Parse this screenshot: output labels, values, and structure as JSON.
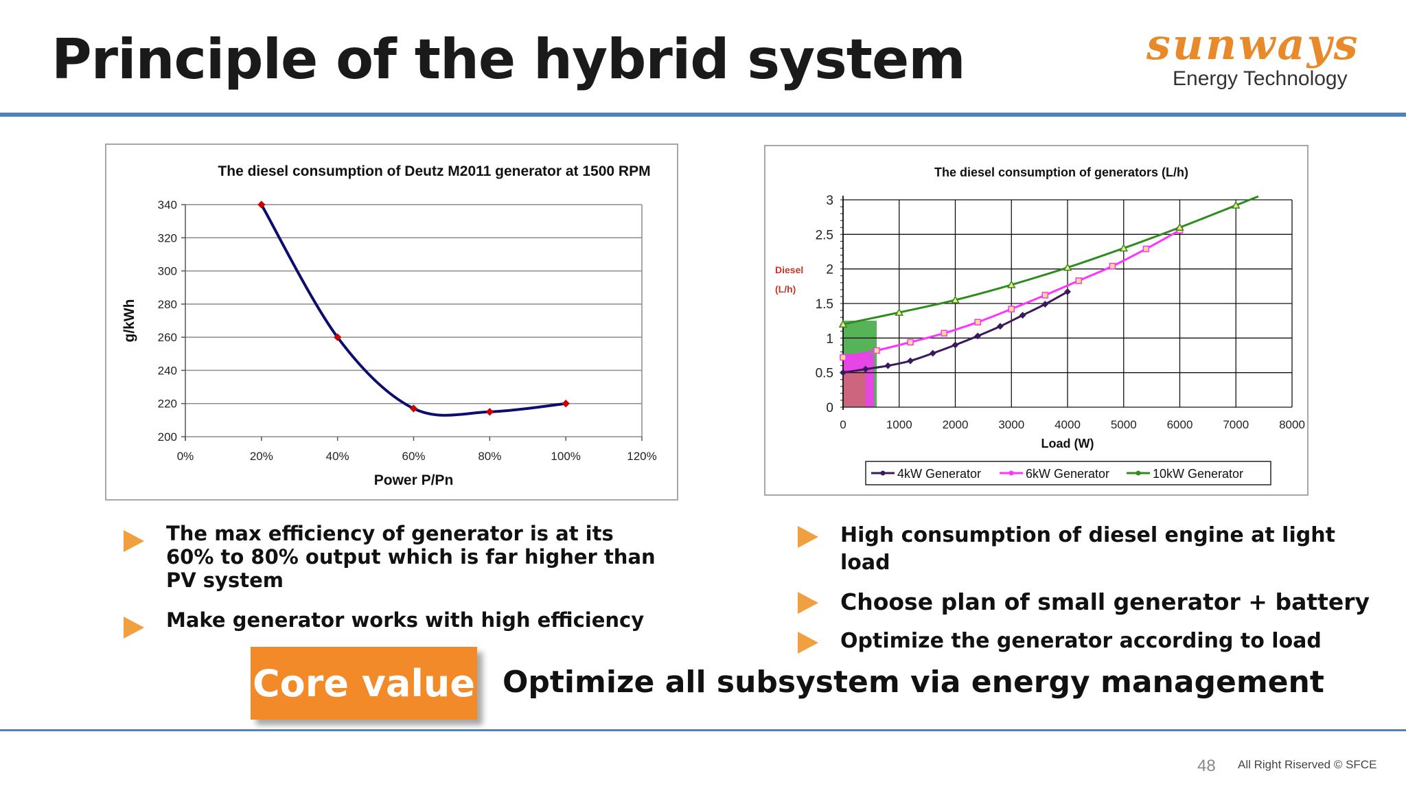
{
  "header": {
    "title": "Principle of the hybrid system",
    "logo_brand": "sunways",
    "logo_sub": "Energy Technology"
  },
  "chart_data": [
    {
      "type": "line",
      "title": "The diesel consumption of Deutz M2011 generator at 1500 RPM",
      "xlabel": "Power P/Pn",
      "ylabel": "g/kWh",
      "x": [
        0.2,
        0.4,
        0.6,
        0.8,
        1.0
      ],
      "values": [
        340,
        260,
        217,
        215,
        220
      ],
      "xlim": [
        0,
        1.2
      ],
      "ylim": [
        200,
        340
      ],
      "x_ticks": [
        "0%",
        "20%",
        "40%",
        "60%",
        "80%",
        "100%",
        "120%"
      ],
      "y_ticks": [
        "200",
        "220",
        "240",
        "260",
        "280",
        "300",
        "320",
        "340"
      ],
      "grid": true,
      "line_color": "#0d0d6e",
      "marker_color": "#cc0000"
    },
    {
      "type": "line",
      "title": "The diesel consumption of generators (L/h)",
      "xlabel": "Load (W)",
      "ylabel_line1": "Diesel",
      "ylabel_line2": "(L/h)",
      "xlim": [
        0,
        8000
      ],
      "ylim": [
        0,
        3
      ],
      "x_ticks": [
        "0",
        "1000",
        "2000",
        "3000",
        "4000",
        "5000",
        "6000",
        "7000",
        "8000"
      ],
      "y_ticks": [
        "0",
        "0.5",
        "1",
        "1.5",
        "2",
        "2.5",
        "3"
      ],
      "grid": true,
      "legend_position": "bottom",
      "series": [
        {
          "name": "4kW Generator",
          "color": "#3a1a5e",
          "x": [
            0,
            400,
            800,
            1200,
            1600,
            2000,
            2400,
            2800,
            3200,
            3600,
            4000
          ],
          "values": [
            0.5,
            0.55,
            0.6,
            0.67,
            0.78,
            0.9,
            1.03,
            1.17,
            1.33,
            1.49,
            1.67
          ]
        },
        {
          "name": "6kW Generator",
          "color": "#ff33ff",
          "x": [
            0,
            600,
            1200,
            1800,
            2400,
            3000,
            3600,
            4200,
            4800,
            5400,
            6000
          ],
          "values": [
            0.72,
            0.82,
            0.94,
            1.07,
            1.23,
            1.42,
            1.62,
            1.83,
            2.04,
            2.29,
            2.56
          ]
        },
        {
          "name": "10kW Generator",
          "color": "#2e8b1e",
          "x": [
            0,
            1000,
            2000,
            3000,
            4000,
            5000,
            6000,
            7000,
            7400
          ],
          "values": [
            1.2,
            1.37,
            1.55,
            1.77,
            2.02,
            2.3,
            2.6,
            2.92,
            3.05
          ]
        }
      ],
      "shaded_regions": [
        {
          "series": "10kW Generator",
          "x_max": 600,
          "color": "#3aa63a"
        },
        {
          "series": "6kW Generator",
          "x_max": 550,
          "color": "#ff33ff"
        },
        {
          "series": "4kW Generator",
          "x_max": 400,
          "color": "#c96b6b"
        }
      ]
    }
  ],
  "bullets_left": [
    "The max efficiency of generator is at its 60% to 80% output which is far higher than PV system",
    "Make generator works with high efficiency"
  ],
  "bullets_right": [
    "High consumption of diesel engine at light load",
    "Choose plan of small generator + battery",
    "Optimize the generator according to load"
  ],
  "core": {
    "button_label": "Core value",
    "text": "Optimize all subsystem via energy management"
  },
  "footer": {
    "page_number": "48",
    "copyright": "All Right Riserved  © SFCE"
  },
  "colors": {
    "accent_blue": "#4f81bd",
    "orange": "#f28a2a",
    "bullet_orange": "#f0a040"
  }
}
